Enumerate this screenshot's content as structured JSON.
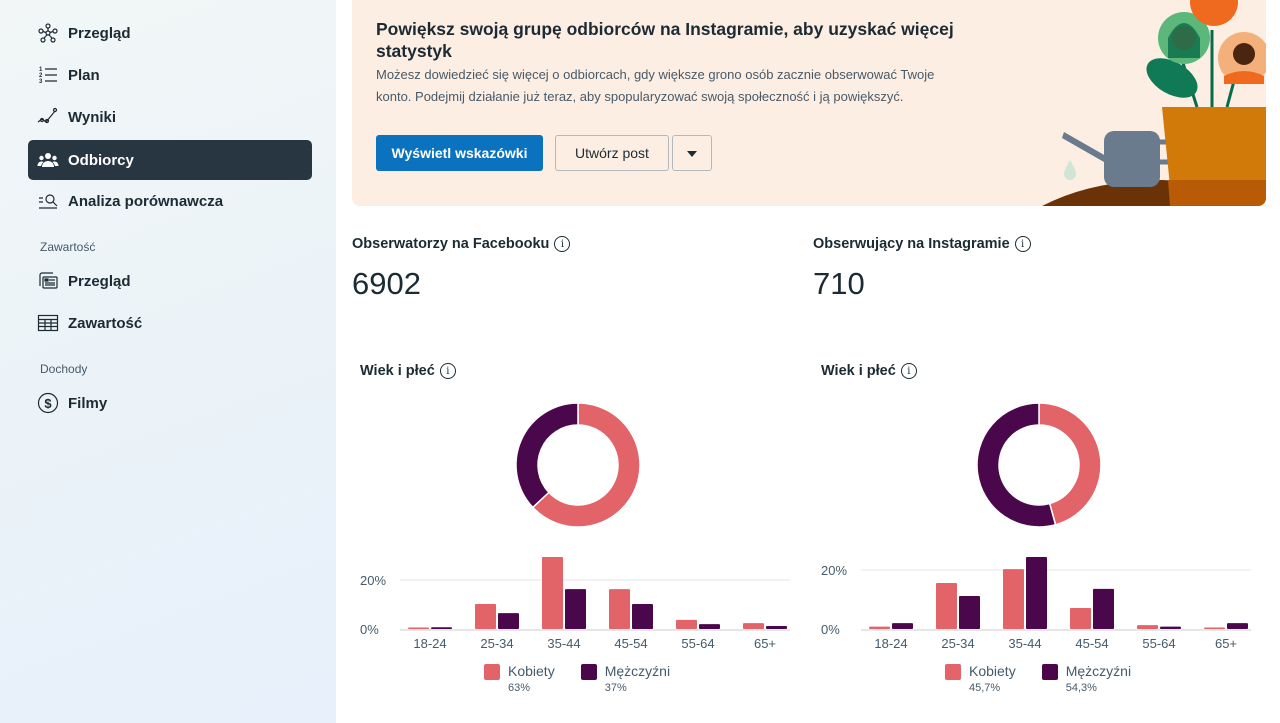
{
  "sidebar": {
    "items": [
      {
        "label": "Przegląd",
        "icon": "network-icon"
      },
      {
        "label": "Plan",
        "icon": "numbered-list-icon"
      },
      {
        "label": "Wyniki",
        "icon": "trend-line-icon"
      },
      {
        "label": "Odbiorcy",
        "icon": "people-icon",
        "active": true
      },
      {
        "label": "Analiza porównawcza",
        "icon": "search-list-icon"
      }
    ],
    "sections": [
      {
        "label": "Zawartość",
        "items": [
          {
            "label": "Przegląd",
            "icon": "content-cards-icon"
          },
          {
            "label": "Zawartość",
            "icon": "table-icon"
          }
        ]
      },
      {
        "label": "Dochody",
        "items": [
          {
            "label": "Filmy",
            "icon": "dollar-circle-icon"
          }
        ]
      }
    ]
  },
  "banner": {
    "title": "Powiększ swoją grupę odbiorców na Instagramie, aby uzyskać więcej statystyk",
    "text": "Możesz dowiedzieć się więcej o odbiorcach, gdy większe grono osób zacznie obserwować Twoje konto. Podejmij działanie już teraz, aby spopularyzować swoją społeczność i ją powiększyć.",
    "primary_button": "Wyświetl wskazówki",
    "secondary_button": "Utwórz post",
    "background": "#fdeee3",
    "accent": "#0a72bf"
  },
  "metrics": {
    "facebook": {
      "title": "Obserwatorzy na Facebooku",
      "value": "6902"
    },
    "instagram": {
      "title": "Obserwujący na Instagramie",
      "value": "710"
    }
  },
  "colors": {
    "women": "#e26368",
    "men": "#4b074b"
  },
  "chart_data": [
    {
      "type": "bar",
      "title": "Wiek i płeć",
      "platform": "Facebook",
      "categories": [
        "18-24",
        "25-34",
        "35-44",
        "45-54",
        "55-64",
        "65+"
      ],
      "series": [
        {
          "name": "Kobiety",
          "total": "63%",
          "values": [
            0.6,
            10.2,
            29.4,
            16.3,
            3.7,
            2.4
          ]
        },
        {
          "name": "Mężczyźni",
          "total": "37%",
          "values": [
            0.7,
            6.5,
            16.3,
            10.2,
            2.0,
            1.2
          ]
        }
      ],
      "donut": {
        "Kobiety": 63,
        "Mężczyźni": 37
      },
      "yticks": [
        "0%",
        "20%"
      ],
      "ylim": [
        0,
        30
      ],
      "grid": true,
      "legend": "bottom"
    },
    {
      "type": "bar",
      "title": "Wiek i płeć",
      "platform": "Instagram",
      "categories": [
        "18-24",
        "25-34",
        "35-44",
        "45-54",
        "55-64",
        "65+"
      ],
      "series": [
        {
          "name": "Kobiety",
          "total": "45,7%",
          "values": [
            0.8,
            15.6,
            20.3,
            7.1,
            1.3,
            0.5
          ]
        },
        {
          "name": "Mężczyźni",
          "total": "54,3%",
          "values": [
            2.0,
            11.2,
            24.4,
            13.6,
            0.8,
            2.0
          ]
        }
      ],
      "donut": {
        "Kobiety": 45.7,
        "Mężczyźni": 54.3
      },
      "yticks": [
        "0%",
        "20%"
      ],
      "ylim": [
        0,
        25
      ],
      "grid": true,
      "legend": "bottom"
    }
  ]
}
